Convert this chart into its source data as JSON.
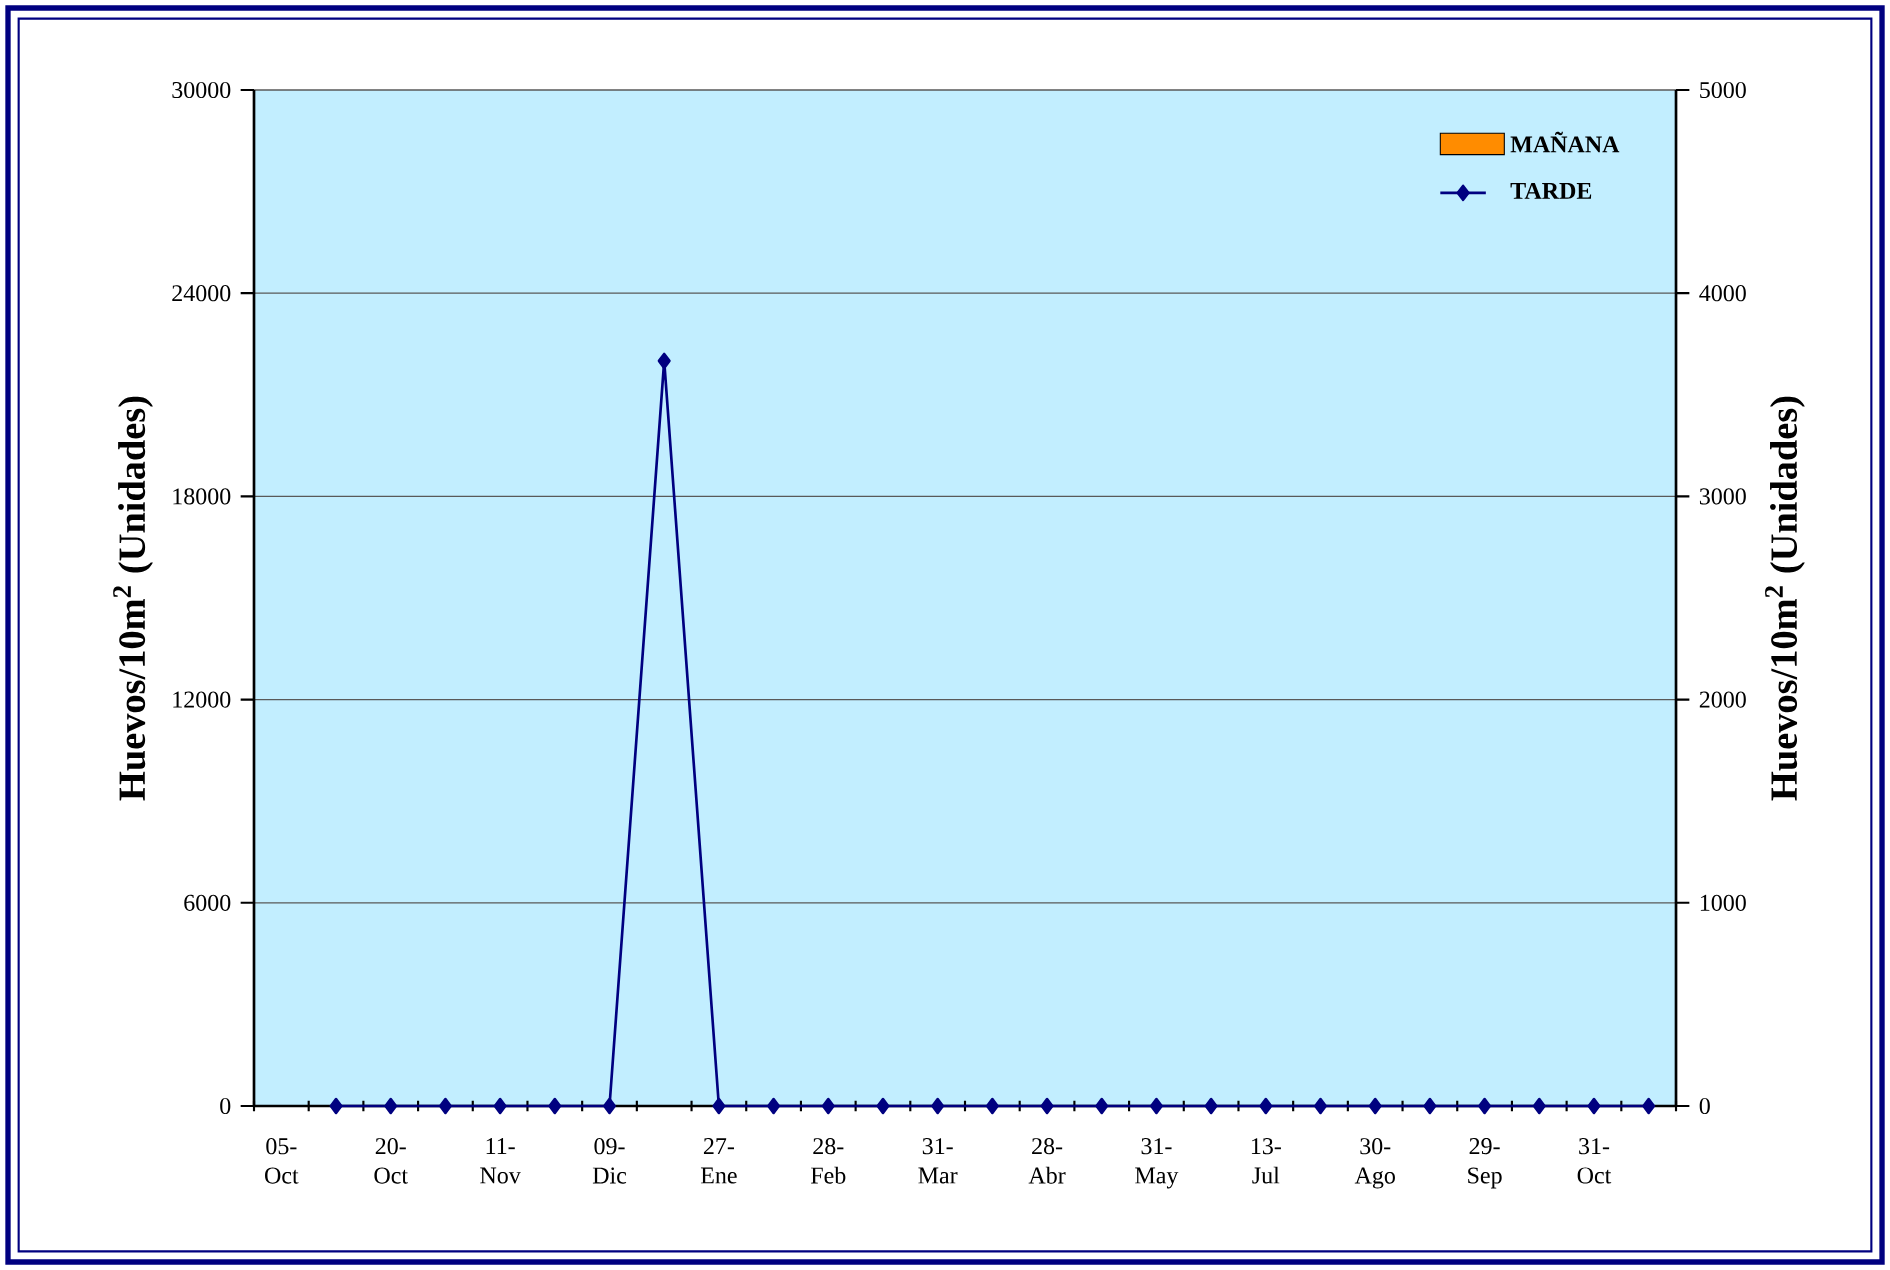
{
  "chart_data": {
    "type": "bar",
    "categories": [
      "05-Oct",
      null,
      "20-Oct",
      null,
      "11-Nov",
      null,
      "09-Dic",
      null,
      "27-Ene",
      null,
      "28-Feb",
      null,
      "31-Mar",
      null,
      "28-Abr",
      null,
      "31-May",
      null,
      "13-Jul",
      null,
      "30-Ago",
      null,
      "29-Sep",
      null,
      "31-Oct",
      null
    ],
    "series": [
      {
        "name": "MAÑANA",
        "color": "#ff8c00",
        "values": [
          null,
          0,
          0,
          0,
          0,
          0,
          0,
          0,
          0,
          0,
          0,
          0,
          0,
          0,
          0,
          0,
          0,
          0,
          0,
          0,
          0,
          0,
          0,
          0,
          0,
          0
        ]
      },
      {
        "name": "TARDE",
        "type": "line",
        "color": "#000080",
        "marker": "diamond",
        "values": [
          null,
          0,
          0,
          0,
          0,
          0,
          0,
          22000,
          0,
          0,
          0,
          0,
          0,
          0,
          0,
          0,
          0,
          0,
          0,
          0,
          0,
          0,
          0,
          0,
          0,
          0
        ]
      }
    ],
    "ylabel": "Huevos/10m$^{2}$ (Unidades)",
    "y2label": "Huevos/10m$^{2}$ (Unidades)",
    "ylim": [
      0,
      30000
    ],
    "yticks": [
      0,
      6000,
      12000,
      18000,
      24000,
      30000
    ],
    "y2lim": [
      0,
      5000
    ],
    "y2ticks": [
      0,
      1000,
      2000,
      3000,
      4000,
      5000
    ],
    "grid": "y",
    "legend": "top right"
  }
}
